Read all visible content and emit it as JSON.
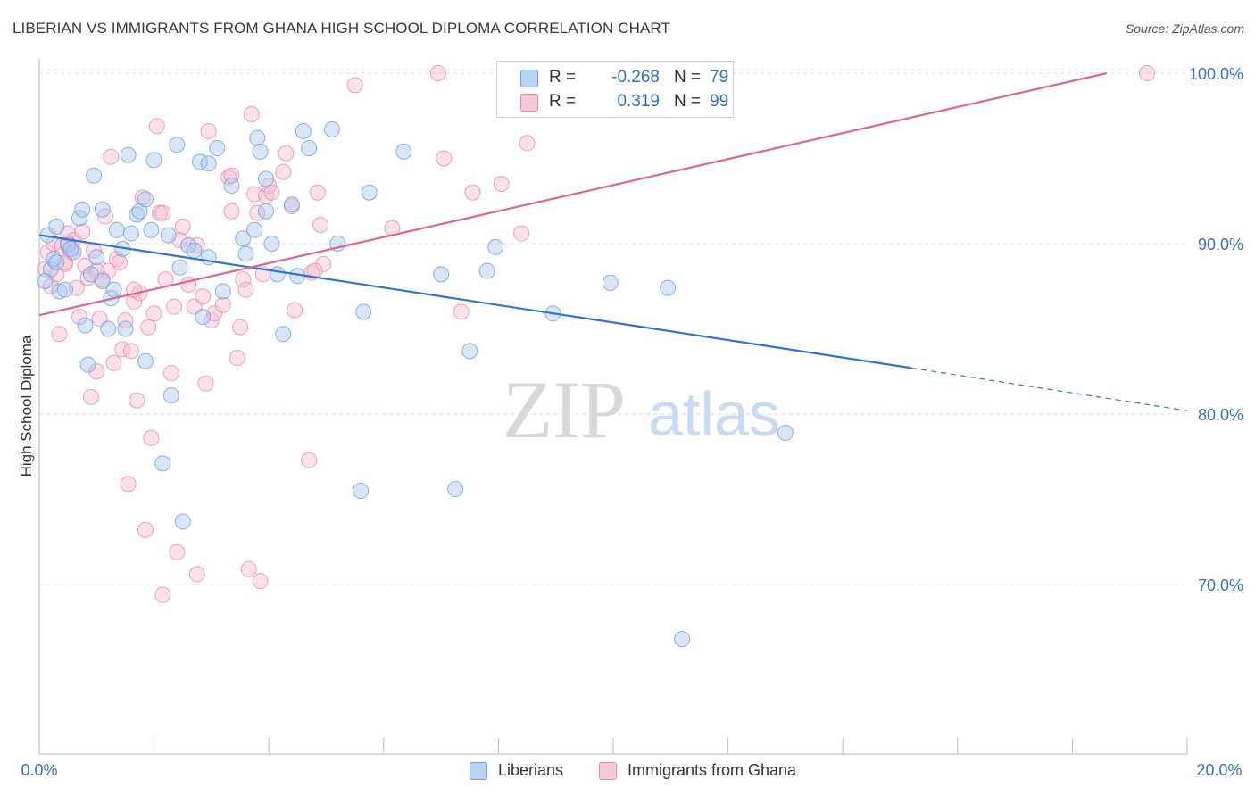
{
  "header": {
    "title": "LIBERIAN VS IMMIGRANTS FROM GHANA HIGH SCHOOL DIPLOMA CORRELATION CHART",
    "source": "Source: ZipAtlas.com"
  },
  "watermark": {
    "zip": "ZIP",
    "atlas": "atlas"
  },
  "legend_top": {
    "rows": [
      {
        "r_label": "R =",
        "r_value": "-0.268",
        "n_label": "N =",
        "n_value": "79"
      },
      {
        "r_label": "R =",
        "r_value": "0.319",
        "n_label": "N =",
        "n_value": "99"
      }
    ]
  },
  "legend_bottom": {
    "items": [
      "Liberians",
      "Immigrants from Ghana"
    ]
  },
  "colors": {
    "blue_fill": "#a9c8f0",
    "blue_stroke": "#6f9fdc",
    "blue_line": "#2f74d0",
    "pink_fill": "#f6bcd0",
    "pink_stroke": "#e88aaa",
    "pink_line": "#e06490",
    "axis_label": "#3a6fc4",
    "grid": "#dcdcdc"
  },
  "chart_data": {
    "type": "scatter",
    "title": "LIBERIAN VS IMMIGRANTS FROM GHANA HIGH SCHOOL DIPLOMA CORRELATION CHART",
    "xlabel": "",
    "ylabel": "High School Diploma",
    "xlim": [
      0,
      20
    ],
    "ylim": [
      61,
      100.5
    ],
    "x_tick_labels": [
      "0.0%",
      "20.0%"
    ],
    "y_ticks": [
      70,
      80,
      90,
      100
    ],
    "y_tick_labels": [
      "70.0%",
      "80.0%",
      "90.0%",
      "100.0%"
    ],
    "grid": true,
    "legend_position": "top-center",
    "series": [
      {
        "name": "Liberians",
        "r": -0.268,
        "n": 79,
        "trend": {
          "x0": 0,
          "y0": 90.5,
          "x1": 15.2,
          "y1": 82.7,
          "dash_x1": 20,
          "dash_y1": 80.2
        },
        "points": [
          [
            0.15,
            90.5
          ],
          [
            0.2,
            88.5
          ],
          [
            0.25,
            89.1
          ],
          [
            0.3,
            88.9
          ],
          [
            0.35,
            87.2
          ],
          [
            0.45,
            87.3
          ],
          [
            0.5,
            89.9
          ],
          [
            0.6,
            89.5
          ],
          [
            0.7,
            91.5
          ],
          [
            0.75,
            92.0
          ],
          [
            0.8,
            85.2
          ],
          [
            0.85,
            82.9
          ],
          [
            0.95,
            94.0
          ],
          [
            1.0,
            89.2
          ],
          [
            1.1,
            87.8
          ],
          [
            1.1,
            92.0
          ],
          [
            1.2,
            85.0
          ],
          [
            1.25,
            86.8
          ],
          [
            1.3,
            87.3
          ],
          [
            1.35,
            90.8
          ],
          [
            1.45,
            89.7
          ],
          [
            1.5,
            85.0
          ],
          [
            1.55,
            95.2
          ],
          [
            1.6,
            90.6
          ],
          [
            1.7,
            91.7
          ],
          [
            1.75,
            91.9
          ],
          [
            1.85,
            92.6
          ],
          [
            1.85,
            83.1
          ],
          [
            1.95,
            90.8
          ],
          [
            2.0,
            94.9
          ],
          [
            2.15,
            77.1
          ],
          [
            2.25,
            90.5
          ],
          [
            2.3,
            81.1
          ],
          [
            2.4,
            95.8
          ],
          [
            2.45,
            88.6
          ],
          [
            2.5,
            73.7
          ],
          [
            2.6,
            89.9
          ],
          [
            2.8,
            94.8
          ],
          [
            2.85,
            85.7
          ],
          [
            2.95,
            89.2
          ],
          [
            2.95,
            94.7
          ],
          [
            3.1,
            95.6
          ],
          [
            3.2,
            87.2
          ],
          [
            3.35,
            93.4
          ],
          [
            3.55,
            90.3
          ],
          [
            3.75,
            90.8
          ],
          [
            3.8,
            96.2
          ],
          [
            3.85,
            95.4
          ],
          [
            3.95,
            91.9
          ],
          [
            3.95,
            93.8
          ],
          [
            4.05,
            90.0
          ],
          [
            4.15,
            88.2
          ],
          [
            4.25,
            84.7
          ],
          [
            4.4,
            92.3
          ],
          [
            4.5,
            88.1
          ],
          [
            4.6,
            96.6
          ],
          [
            4.7,
            95.6
          ],
          [
            5.1,
            96.7
          ],
          [
            5.6,
            75.5
          ],
          [
            5.65,
            86.0
          ],
          [
            5.75,
            93.0
          ],
          [
            6.35,
            95.4
          ],
          [
            7.0,
            88.2
          ],
          [
            7.25,
            75.6
          ],
          [
            7.5,
            83.7
          ],
          [
            7.8,
            88.4
          ],
          [
            7.95,
            89.8
          ],
          [
            8.95,
            85.9
          ],
          [
            9.95,
            87.7
          ],
          [
            10.95,
            87.4
          ],
          [
            11.2,
            66.8
          ],
          [
            13.0,
            78.9
          ],
          [
            0.1,
            87.8
          ],
          [
            0.3,
            91.0
          ],
          [
            0.55,
            89.7
          ],
          [
            0.9,
            88.2
          ],
          [
            2.7,
            89.6
          ],
          [
            3.6,
            89.4
          ],
          [
            5.2,
            90.0
          ]
        ]
      },
      {
        "name": "Immigrants from Ghana",
        "r": 0.319,
        "n": 99,
        "trend": {
          "x0": 0,
          "y0": 85.8,
          "x1": 18.6,
          "y1": 100.0
        },
        "points": [
          [
            0.1,
            88.5
          ],
          [
            0.15,
            89.5
          ],
          [
            0.2,
            87.5
          ],
          [
            0.25,
            90.0
          ],
          [
            0.3,
            88.2
          ],
          [
            0.35,
            84.7
          ],
          [
            0.4,
            89.9
          ],
          [
            0.45,
            88.8
          ],
          [
            0.5,
            90.6
          ],
          [
            0.55,
            89.5
          ],
          [
            0.6,
            90.2
          ],
          [
            0.65,
            87.4
          ],
          [
            0.7,
            85.7
          ],
          [
            0.75,
            90.7
          ],
          [
            0.8,
            88.7
          ],
          [
            0.85,
            88.0
          ],
          [
            0.9,
            81.0
          ],
          [
            0.95,
            89.6
          ],
          [
            1.0,
            82.5
          ],
          [
            1.05,
            85.6
          ],
          [
            1.1,
            87.9
          ],
          [
            1.15,
            91.6
          ],
          [
            1.2,
            88.4
          ],
          [
            1.25,
            95.1
          ],
          [
            1.3,
            83.0
          ],
          [
            1.35,
            89.1
          ],
          [
            1.4,
            88.9
          ],
          [
            1.45,
            83.8
          ],
          [
            1.5,
            85.5
          ],
          [
            1.55,
            75.9
          ],
          [
            1.6,
            83.7
          ],
          [
            1.65,
            86.6
          ],
          [
            1.7,
            80.8
          ],
          [
            1.75,
            87.1
          ],
          [
            1.8,
            92.7
          ],
          [
            1.85,
            73.2
          ],
          [
            1.9,
            85.1
          ],
          [
            1.95,
            78.6
          ],
          [
            2.0,
            85.9
          ],
          [
            2.05,
            96.9
          ],
          [
            2.1,
            91.8
          ],
          [
            2.15,
            69.4
          ],
          [
            2.2,
            87.9
          ],
          [
            2.3,
            82.4
          ],
          [
            2.35,
            86.3
          ],
          [
            2.4,
            71.9
          ],
          [
            2.45,
            90.2
          ],
          [
            2.5,
            91.0
          ],
          [
            2.6,
            87.6
          ],
          [
            2.7,
            86.3
          ],
          [
            2.75,
            70.6
          ],
          [
            2.85,
            86.9
          ],
          [
            2.9,
            81.8
          ],
          [
            2.95,
            96.6
          ],
          [
            3.0,
            85.5
          ],
          [
            3.05,
            85.9
          ],
          [
            3.2,
            86.4
          ],
          [
            3.3,
            93.9
          ],
          [
            3.35,
            94.0
          ],
          [
            3.45,
            83.3
          ],
          [
            3.5,
            85.1
          ],
          [
            3.55,
            87.9
          ],
          [
            3.6,
            87.3
          ],
          [
            3.65,
            70.9
          ],
          [
            3.7,
            97.6
          ],
          [
            3.75,
            92.9
          ],
          [
            3.8,
            91.8
          ],
          [
            3.85,
            70.2
          ],
          [
            3.95,
            92.8
          ],
          [
            4.0,
            93.4
          ],
          [
            4.05,
            93.0
          ],
          [
            4.25,
            94.2
          ],
          [
            4.3,
            95.3
          ],
          [
            4.4,
            92.2
          ],
          [
            4.45,
            86.1
          ],
          [
            4.7,
            77.3
          ],
          [
            4.75,
            88.3
          ],
          [
            4.85,
            93.0
          ],
          [
            4.9,
            91.1
          ],
          [
            4.95,
            88.8
          ],
          [
            5.5,
            99.3
          ],
          [
            6.15,
            90.9
          ],
          [
            6.95,
            100.0
          ],
          [
            7.05,
            95.0
          ],
          [
            7.35,
            86.0
          ],
          [
            7.55,
            93.0
          ],
          [
            8.05,
            93.5
          ],
          [
            8.4,
            90.6
          ],
          [
            8.5,
            95.9
          ],
          [
            19.3,
            100.0
          ],
          [
            0.45,
            88.9
          ],
          [
            1.0,
            88.4
          ],
          [
            2.15,
            91.8
          ],
          [
            3.35,
            91.9
          ],
          [
            4.8,
            88.4
          ],
          [
            2.75,
            89.9
          ],
          [
            1.65,
            87.3
          ],
          [
            0.5,
            90.0
          ],
          [
            3.9,
            88.2
          ]
        ]
      }
    ]
  }
}
